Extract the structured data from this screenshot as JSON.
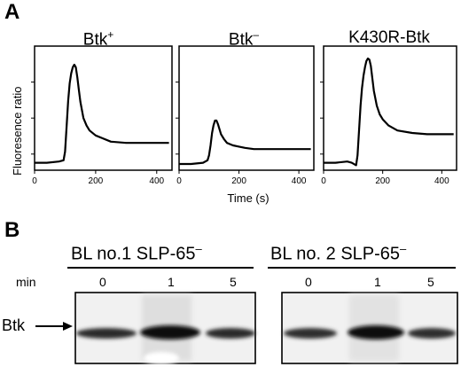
{
  "panel_a": {
    "letter": "A",
    "y_axis_label": "Fluoresence ratio",
    "x_axis_label": "Time (s)",
    "charts": [
      {
        "title": "Btk",
        "title_sup": "+"
      },
      {
        "title": "Btk",
        "title_sup": "–"
      },
      {
        "title": "K430R-Btk",
        "title_sup": ""
      }
    ]
  },
  "panel_b": {
    "letter": "B",
    "row_label": "min",
    "band_label": "Btk",
    "blots": [
      {
        "title": "BL no.1 SLP-65",
        "title_sup": "–",
        "lanes": [
          "0",
          "1",
          "5"
        ]
      },
      {
        "title": "BL no. 2 SLP-65",
        "title_sup": "–",
        "lanes": [
          "0",
          "1",
          "5"
        ]
      }
    ]
  },
  "chart_data": [
    {
      "type": "line",
      "title": "Btk+",
      "xlabel": "Time (s)",
      "ylabel": "Fluoresence ratio",
      "xlim": [
        0,
        450
      ],
      "ylim": [
        0,
        1
      ],
      "x_ticks": [
        "0",
        "200",
        "400"
      ],
      "series": [
        {
          "x": [
            0,
            40,
            80,
            95,
            100,
            105,
            110,
            115,
            120,
            125,
            130,
            135,
            140,
            145,
            150,
            160,
            170,
            180,
            200,
            220,
            250,
            300,
            350,
            400,
            440
          ],
          "y": [
            0.06,
            0.06,
            0.07,
            0.08,
            0.15,
            0.36,
            0.56,
            0.7,
            0.78,
            0.83,
            0.85,
            0.83,
            0.75,
            0.65,
            0.55,
            0.42,
            0.36,
            0.32,
            0.28,
            0.26,
            0.23,
            0.22,
            0.22,
            0.22,
            0.22
          ]
        }
      ]
    },
    {
      "type": "line",
      "title": "Btk–",
      "xlabel": "Time (s)",
      "ylabel": "Fluoresence ratio",
      "xlim": [
        0,
        450
      ],
      "ylim": [
        0,
        1
      ],
      "x_ticks": [
        "0",
        "200",
        "400"
      ],
      "series": [
        {
          "x": [
            0,
            40,
            80,
            95,
            100,
            105,
            110,
            115,
            120,
            125,
            130,
            135,
            140,
            150,
            160,
            170,
            180,
            200,
            220,
            250,
            300,
            350,
            400,
            440
          ],
          "y": [
            0.05,
            0.05,
            0.06,
            0.08,
            0.12,
            0.2,
            0.3,
            0.36,
            0.4,
            0.4,
            0.37,
            0.33,
            0.29,
            0.25,
            0.22,
            0.21,
            0.2,
            0.19,
            0.18,
            0.17,
            0.17,
            0.17,
            0.17,
            0.17
          ]
        }
      ]
    },
    {
      "type": "line",
      "title": "K430R-Btk",
      "xlabel": "Time (s)",
      "ylabel": "Fluoresence ratio",
      "xlim": [
        0,
        450
      ],
      "ylim": [
        0,
        1
      ],
      "x_ticks": [
        "0",
        "200",
        "400"
      ],
      "series": [
        {
          "x": [
            0,
            40,
            80,
            95,
            110,
            115,
            120,
            125,
            130,
            135,
            140,
            145,
            150,
            155,
            160,
            165,
            170,
            180,
            190,
            200,
            220,
            250,
            300,
            350,
            400,
            440
          ],
          "y": [
            0.06,
            0.06,
            0.07,
            0.06,
            0.04,
            0.12,
            0.32,
            0.52,
            0.66,
            0.76,
            0.83,
            0.88,
            0.9,
            0.89,
            0.84,
            0.74,
            0.64,
            0.52,
            0.45,
            0.41,
            0.36,
            0.32,
            0.3,
            0.29,
            0.29,
            0.29
          ]
        }
      ]
    }
  ]
}
